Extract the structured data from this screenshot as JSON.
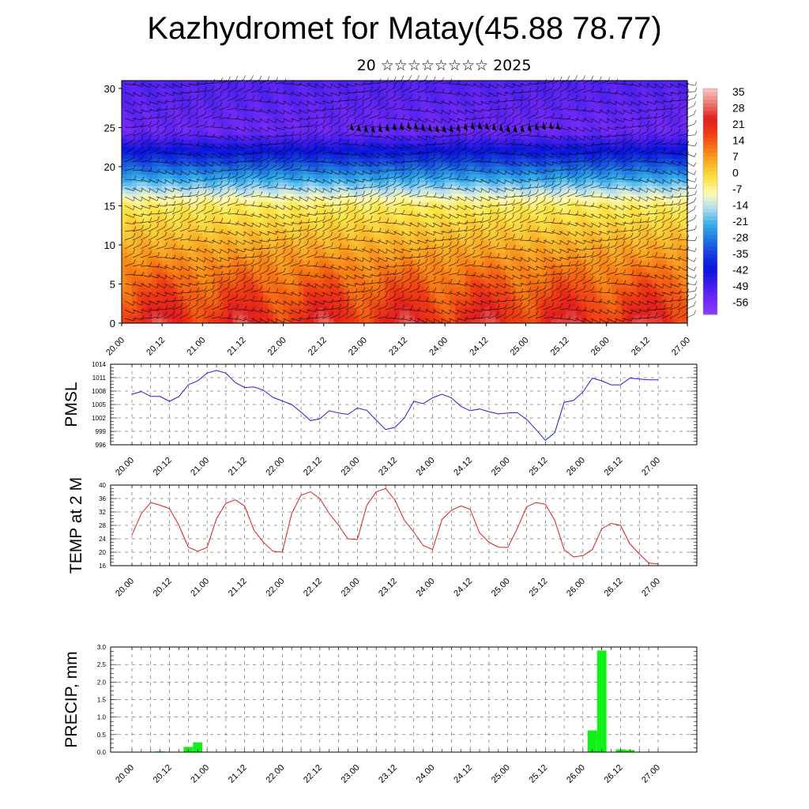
{
  "title": "Kazhydromet for Matay(45.88 78.77)",
  "subtitle": "20 ☆☆☆☆☆☆☆☆ 2025",
  "colors": {
    "pmsl_line": "#1f1fd6",
    "temp_line": "#dd1c1c",
    "precip_bar": "#12f01a",
    "barb_dark": "#000000"
  },
  "chart_data": [
    {
      "type": "heatmap",
      "name_shown": "",
      "y_ticks": [
        "0",
        "5",
        "10",
        "15",
        "20",
        "25",
        "30"
      ],
      "ylim": [
        0,
        31
      ],
      "x_ticks": [
        "20.00",
        "20.12",
        "21.00",
        "21.12",
        "22.00",
        "22.12",
        "23.00",
        "23.12",
        "24.00",
        "24.12",
        "25.00",
        "25.12",
        "26.00",
        "26.12",
        "27.00"
      ],
      "colorbar_labels": [
        "35",
        "28",
        "21",
        "14",
        "7",
        "0",
        "-7",
        "-14",
        "-21",
        "-28",
        "-35",
        "-42",
        "-49",
        "-56"
      ],
      "colorbar_range": [
        -63,
        42
      ],
      "overlay": "wind barbs"
    },
    {
      "type": "line",
      "ylabel": "PMSL",
      "ylim": [
        996,
        1014
      ],
      "y_ticks": [
        "996",
        "999",
        "1002",
        "1005",
        "1008",
        "1011",
        "1014"
      ],
      "x_ticks": [
        "20.00",
        "20.12",
        "21.00",
        "21.12",
        "22.00",
        "22.12",
        "23.00",
        "23.12",
        "24.00",
        "24.12",
        "25.00",
        "25.12",
        "26.00",
        "26.12",
        "27.00"
      ],
      "series": [
        {
          "values": [
            1007.3,
            1007.9,
            1006.8,
            1006.8,
            1005.7,
            1006.8,
            1009.4,
            1010.3,
            1012.0,
            1012.6,
            1012.0,
            1009.9,
            1008.8,
            1008.9,
            1008.2,
            1006.6,
            1005.8,
            1005.0,
            1003.3,
            1001.4,
            1001.8,
            1003.6,
            1003.1,
            1002.8,
            1004.2,
            1003.7,
            1001.5,
            999.4,
            999.9,
            1002.0,
            1005.7,
            1005.2,
            1006.5,
            1007.3,
            1006.5,
            1004.6,
            1003.6,
            1004.0,
            1003.4,
            1002.9,
            1003.1,
            1003.2,
            1001.7,
            999.4,
            997.0,
            998.7,
            1005.5,
            1005.9,
            1007.8,
            1010.9,
            1010.3,
            1009.4,
            1009.4,
            1010.9,
            1010.7,
            1010.5,
            1010.5
          ]
        }
      ]
    },
    {
      "type": "line",
      "ylabel": "TEMP at 2 M",
      "ylim": [
        16,
        40
      ],
      "y_ticks": [
        "16",
        "20",
        "24",
        "28",
        "32",
        "36",
        "40"
      ],
      "x_ticks": [
        "20.00",
        "20.12",
        "21.00",
        "21.12",
        "22.00",
        "22.12",
        "23.00",
        "23.12",
        "24.00",
        "24.12",
        "25.00",
        "25.12",
        "26.00",
        "26.12",
        "27.00"
      ],
      "series": [
        {
          "values": [
            25.2,
            31.5,
            34.8,
            34.0,
            33.0,
            28.0,
            21.5,
            20.3,
            21.4,
            30.0,
            34.6,
            35.6,
            33.8,
            26.5,
            23.0,
            20.3,
            20.0,
            31.5,
            37.0,
            38.0,
            36.0,
            31.5,
            28.0,
            24.0,
            23.8,
            34.0,
            38.0,
            39.0,
            35.5,
            29.5,
            26.0,
            22.0,
            20.8,
            29.8,
            32.5,
            33.8,
            32.8,
            25.8,
            23.0,
            21.5,
            21.4,
            27.0,
            33.5,
            34.8,
            34.3,
            29.5,
            20.8,
            18.6,
            19.0,
            20.8,
            27.0,
            28.6,
            28.0,
            22.5,
            19.5,
            16.8,
            16.5
          ]
        }
      ]
    },
    {
      "type": "bar",
      "ylabel": "PRECIP, mm",
      "ylim": [
        0,
        3.0
      ],
      "y_ticks": [
        "0.0",
        "0.5",
        "1.0",
        "1.5",
        "2.0",
        "2.5",
        "3.0"
      ],
      "x_ticks": [
        "20.00",
        "20.12",
        "21.00",
        "21.12",
        "22.00",
        "22.12",
        "23.00",
        "23.12",
        "24.00",
        "24.12",
        "25.00",
        "25.12",
        "26.00",
        "26.12",
        "27.00"
      ],
      "series": [
        {
          "values": [
            0,
            0,
            0,
            0.02,
            0,
            0,
            0.15,
            0.28,
            0,
            0,
            0,
            0,
            0,
            0,
            0,
            0,
            0,
            0,
            0,
            0,
            0,
            0,
            0,
            0,
            0,
            0,
            0,
            0,
            0,
            0,
            0,
            0,
            0,
            0,
            0,
            0,
            0,
            0,
            0,
            0,
            0,
            0,
            0,
            0,
            0,
            0,
            0,
            0,
            0,
            0.62,
            2.9,
            0,
            0.08,
            0.06,
            0,
            0,
            0
          ]
        }
      ]
    }
  ]
}
